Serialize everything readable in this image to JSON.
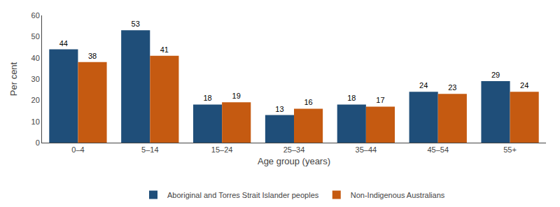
{
  "chart_data": {
    "type": "bar",
    "xlabel": "Age group (years)",
    "ylabel": "Per cent",
    "categories": [
      "0–4",
      "5–14",
      "15–24",
      "25–34",
      "35–44",
      "45–54",
      "55+"
    ],
    "series": [
      {
        "name": "Aboriginal and Torres Strait Islander peoples",
        "color": "#1F4E79",
        "values": [
          44,
          53,
          18,
          13,
          18,
          24,
          29
        ]
      },
      {
        "name": "Non-Indigenous Australians",
        "color": "#C55A11",
        "values": [
          38,
          41,
          19,
          16,
          17,
          23,
          24
        ]
      }
    ],
    "ylim": [
      0,
      60
    ],
    "yticks": [
      0,
      10,
      20,
      30,
      40,
      50,
      60
    ],
    "grid": false,
    "legend": "bottom",
    "data_labels": true
  }
}
